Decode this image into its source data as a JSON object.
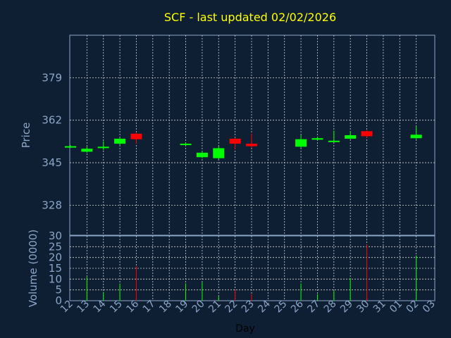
{
  "chart_data": {
    "type": "candlestick",
    "title": "SCF - last updated 02/02/2026",
    "xlabel": "Day",
    "price_ylabel": "Price",
    "volume_ylabel": "Volume (0000)",
    "x_ticks": [
      "12",
      "13",
      "14",
      "15",
      "16",
      "17",
      "18",
      "19",
      "20",
      "21",
      "22",
      "23",
      "24",
      "25",
      "26",
      "27",
      "28",
      "29",
      "30",
      "31",
      "01",
      "02",
      "03"
    ],
    "price_yticks": [
      328,
      345,
      362,
      379
    ],
    "price_ylim": [
      316,
      396
    ],
    "volume_yticks": [
      0,
      5,
      10,
      15,
      20,
      25,
      30
    ],
    "volume_ylim": [
      0,
      30
    ],
    "grid": true,
    "colors": {
      "up": "#00ff00",
      "down": "#ff0000",
      "title": "#ffff00",
      "axis_text": "#8aa6c8",
      "background": "#0f1f33"
    },
    "candles": [
      {
        "day": "12",
        "open": 351.2,
        "close": 351.6,
        "high": 352.0,
        "low": 351.0
      },
      {
        "day": "13",
        "open": 349.4,
        "close": 350.6,
        "high": 351.6,
        "low": 349.0
      },
      {
        "day": "14",
        "open": 351.0,
        "close": 351.4,
        "high": 353.6,
        "low": 350.0
      },
      {
        "day": "15",
        "open": 352.6,
        "close": 354.6,
        "high": 355.0,
        "low": 352.0
      },
      {
        "day": "16",
        "open": 356.6,
        "close": 354.4,
        "high": 357.0,
        "low": 352.6
      },
      {
        "day": "19",
        "open": 352.2,
        "close": 352.6,
        "high": 353.0,
        "low": 351.8
      },
      {
        "day": "20",
        "open": 347.2,
        "close": 349.0,
        "high": 349.6,
        "low": 346.8
      },
      {
        "day": "21",
        "open": 346.8,
        "close": 350.8,
        "high": 351.6,
        "low": 346.4
      },
      {
        "day": "22",
        "open": 354.6,
        "close": 352.6,
        "high": 355.0,
        "low": 350.4
      },
      {
        "day": "23",
        "open": 352.6,
        "close": 351.6,
        "high": 356.6,
        "low": 351.0
      },
      {
        "day": "26",
        "open": 351.4,
        "close": 354.4,
        "high": 356.0,
        "low": 351.0
      },
      {
        "day": "27",
        "open": 354.2,
        "close": 354.8,
        "high": 355.4,
        "low": 354.0
      },
      {
        "day": "28",
        "open": 353.4,
        "close": 353.8,
        "high": 357.8,
        "low": 353.2
      },
      {
        "day": "29",
        "open": 354.6,
        "close": 356.0,
        "high": 357.6,
        "low": 354.4
      },
      {
        "day": "30",
        "open": 357.6,
        "close": 355.6,
        "high": 358.0,
        "low": 355.0
      },
      {
        "day": "02",
        "open": 354.8,
        "close": 356.2,
        "high": 359.6,
        "low": 354.4
      }
    ],
    "volume": [
      {
        "day": "13",
        "value": 11,
        "up": true
      },
      {
        "day": "14",
        "value": 4,
        "up": true
      },
      {
        "day": "15",
        "value": 8,
        "up": true
      },
      {
        "day": "16",
        "value": 16,
        "up": false
      },
      {
        "day": "19",
        "value": 8,
        "up": true
      },
      {
        "day": "20",
        "value": 8.5,
        "up": true
      },
      {
        "day": "21",
        "value": 2,
        "up": true
      },
      {
        "day": "22",
        "value": 5,
        "up": false
      },
      {
        "day": "23",
        "value": 3,
        "up": false
      },
      {
        "day": "26",
        "value": 8,
        "up": true
      },
      {
        "day": "27",
        "value": 3,
        "up": true
      },
      {
        "day": "28",
        "value": 4.5,
        "up": true
      },
      {
        "day": "29",
        "value": 10.5,
        "up": true
      },
      {
        "day": "30",
        "value": 26,
        "up": false
      },
      {
        "day": "02",
        "value": 21,
        "up": true
      }
    ]
  }
}
